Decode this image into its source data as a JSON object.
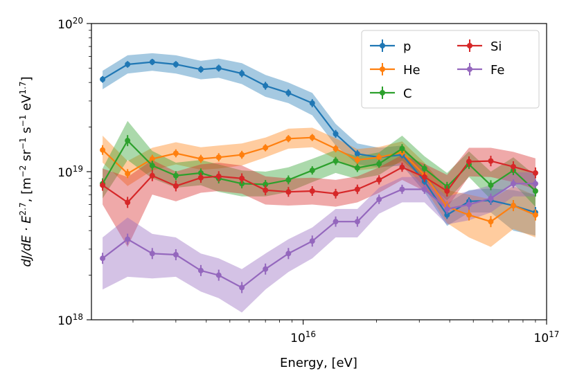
{
  "chart_data": {
    "type": "line",
    "xlabel": "Energy, [eV]",
    "ylabel": {
      "main": "dJ/dE · E",
      "main_exp": "2.7",
      "units_prefix": ", [m",
      "e1": "−2",
      "u1": " sr",
      "e2": "−1",
      "u2": " s",
      "e3": "−1",
      "u3": " eV",
      "e4": "1.7",
      "units_suffix": "]"
    },
    "xscale": "log",
    "yscale": "log",
    "xlim": [
      1350000000000000.0,
      1e+17
    ],
    "ylim": [
      1e+18,
      1e+20
    ],
    "x_ticks": [
      {
        "value": 1e+16,
        "base": "10",
        "exp": "16"
      },
      {
        "value": 1e+17,
        "base": "10",
        "exp": "17"
      }
    ],
    "y_ticks": [
      {
        "value": 1e+18,
        "base": "10",
        "exp": "18"
      },
      {
        "value": 1e+19,
        "base": "10",
        "exp": "19"
      },
      {
        "value": 1e+20,
        "base": "10",
        "exp": "20"
      }
    ],
    "grid": false,
    "legend_position": "top-right",
    "legend_columns": 2,
    "x": [
      1500000000000000.0,
      1900000000000000.0,
      2400000000000000.0,
      3000000000000000.0,
      3800000000000000.0,
      4500000000000000.0,
      5600000000000000.0,
      7000000000000000.0,
      8700000000000000.0,
      1.09e+16,
      1.36e+16,
      1.67e+16,
      2.05e+16,
      2.55e+16,
      3.15e+16,
      3.9e+16,
      4.8e+16,
      5.9e+16,
      7.3e+16,
      9e+16
    ],
    "series": [
      {
        "name": "p",
        "color": "#1f77b4",
        "values": [
          4.2e+19,
          5.3e+19,
          5.5e+19,
          5.3e+19,
          4.9e+19,
          5e+19,
          4.6e+19,
          3.8e+19,
          3.4e+19,
          2.9e+19,
          1.8e+19,
          1.32e+19,
          1.25e+19,
          1.3e+19,
          8.6e+18,
          5.1e+18,
          6.3e+18,
          6.4e+18,
          5.9e+18,
          5.3e+18
        ],
        "band_low": [
          3.6e+19,
          4.6e+19,
          4.8e+19,
          4.6e+19,
          4.2e+19,
          4.3e+19,
          3.9e+19,
          3.2e+19,
          2.9e+19,
          2.4e+19,
          1.5e+19,
          1.12e+19,
          1.07e+19,
          1.1e+19,
          7.3e+18,
          4.3e+18,
          5.3e+18,
          5.3e+18,
          4e+18,
          3.7e+18
        ],
        "band_high": [
          4.8e+19,
          6.1e+19,
          6.3e+19,
          6.1e+19,
          5.6e+19,
          5.8e+19,
          5.4e+19,
          4.5e+19,
          4e+19,
          3.4e+19,
          2.1e+19,
          1.55e+19,
          1.45e+19,
          1.5e+19,
          1e+19,
          6.1e+18,
          7.5e+18,
          7.7e+18,
          7.5e+18,
          7e+18
        ]
      },
      {
        "name": "He",
        "color": "#ff7f0e",
        "values": [
          1.4e+19,
          9.7e+18,
          1.22e+19,
          1.33e+19,
          1.22e+19,
          1.25e+19,
          1.3e+19,
          1.45e+19,
          1.67e+19,
          1.7e+19,
          1.43e+19,
          1.2e+19,
          1.25e+19,
          1.35e+19,
          9.5e+18,
          5.8e+18,
          5.1e+18,
          4.6e+18,
          5.9e+18,
          5.1e+18
        ],
        "band_low": [
          1.15e+19,
          8e+18,
          1.02e+19,
          1.12e+19,
          1.03e+19,
          1.05e+19,
          1.1e+19,
          1.25e+19,
          1.43e+19,
          1.46e+19,
          1.22e+19,
          1.02e+19,
          1.06e+19,
          1.15e+19,
          7.8e+18,
          4.5e+18,
          3.6e+18,
          3.1e+18,
          4.1e+18,
          3.6e+18
        ],
        "band_high": [
          1.75e+19,
          1.18e+19,
          1.45e+19,
          1.58e+19,
          1.46e+19,
          1.5e+19,
          1.55e+19,
          1.7e+19,
          1.95e+19,
          1.98e+19,
          1.68e+19,
          1.42e+19,
          1.47e+19,
          1.6e+19,
          1.15e+19,
          7.5e+18,
          7e+18,
          6.5e+18,
          8e+18,
          6.9e+18
        ]
      },
      {
        "name": "C",
        "color": "#2ca02c",
        "values": [
          8.3e+18,
          1.62e+19,
          1.1e+19,
          9.4e+18,
          9.8e+18,
          9e+18,
          8.3e+18,
          8.2e+18,
          8.8e+18,
          1.02e+19,
          1.18e+19,
          1.06e+19,
          1.13e+19,
          1.43e+19,
          1.05e+19,
          7.9e+18,
          1.12e+19,
          8.1e+18,
          1.02e+19,
          7.4e+18
        ],
        "band_low": [
          6.6e+18,
          1.2e+19,
          9e+18,
          7.8e+18,
          8.1e+18,
          7.3e+18,
          6.8e+18,
          6.8e+18,
          7.3e+18,
          8.5e+18,
          9.8e+18,
          8.9e+18,
          9.5e+18,
          1.19e+19,
          8.8e+18,
          6.4e+18,
          9.2e+18,
          6.5e+18,
          8.3e+18,
          5.8e+18
        ],
        "band_high": [
          1.05e+19,
          2.2e+19,
          1.38e+19,
          1.15e+19,
          1.2e+19,
          1.12e+19,
          1.02e+19,
          1e+19,
          1.07e+19,
          1.22e+19,
          1.4e+19,
          1.27e+19,
          1.35e+19,
          1.75e+19,
          1.27e+19,
          9.8e+18,
          1.37e+19,
          1e+19,
          1.25e+19,
          9.4e+18
        ]
      },
      {
        "name": "Si",
        "color": "#d62728",
        "values": [
          8.1e+18,
          6.2e+18,
          9.4e+18,
          8e+18,
          9.1e+18,
          9.3e+18,
          9e+18,
          7.5e+18,
          7.3e+18,
          7.4e+18,
          7.1e+18,
          7.6e+18,
          8.8e+18,
          1.07e+19,
          9.2e+18,
          7.4e+18,
          1.17e+19,
          1.18e+19,
          1.08e+19,
          9.8e+18
        ],
        "band_low": [
          6e+18,
          3.1e+18,
          7e+18,
          6.3e+18,
          7.2e+18,
          7.4e+18,
          7.1e+18,
          6e+18,
          5.9e+18,
          6e+18,
          5.8e+18,
          6.2e+18,
          7.2e+18,
          8.8e+18,
          7.4e+18,
          5.7e+18,
          9.3e+18,
          9.2e+18,
          8.5e+18,
          7.6e+18
        ],
        "band_high": [
          1.05e+19,
          9.2e+18,
          1.2e+19,
          1e+19,
          1.12e+19,
          1.15e+19,
          1.1e+19,
          9.3e+18,
          9e+18,
          9.1e+18,
          8.8e+18,
          9.3e+18,
          1.07e+19,
          1.3e+19,
          1.13e+19,
          9.5e+18,
          1.45e+19,
          1.45e+19,
          1.36e+19,
          1.23e+19
        ]
      },
      {
        "name": "Fe",
        "color": "#9467bd",
        "values": [
          2.6e+18,
          3.5e+18,
          2.8e+18,
          2.75e+18,
          2.15e+18,
          2e+18,
          1.65e+18,
          2.2e+18,
          2.8e+18,
          3.4e+18,
          4.6e+18,
          4.6e+18,
          6.5e+18,
          7.6e+18,
          7.6e+18,
          5.6e+18,
          6e+18,
          6.6e+18,
          8.3e+18,
          8.3e+18
        ],
        "band_low": [
          1.6e+18,
          1.95e+18,
          1.9e+18,
          1.95e+18,
          1.55e+18,
          1.4e+18,
          1.12e+18,
          1.6e+18,
          2.1e+18,
          2.6e+18,
          3.6e+18,
          3.6e+18,
          5.2e+18,
          6.2e+18,
          6.2e+18,
          4.4e+18,
          4.7e+18,
          5.3e+18,
          6.8e+18,
          6.8e+18
        ],
        "band_high": [
          3.6e+18,
          4.9e+18,
          3.8e+18,
          3.6e+18,
          2.8e+18,
          2.6e+18,
          2.2e+18,
          2.8e+18,
          3.5e+18,
          4.2e+18,
          5.6e+18,
          5.6e+18,
          7.8e+18,
          9.2e+18,
          9.2e+18,
          6.8e+18,
          7.4e+18,
          8.1e+18,
          9.9e+18,
          9.9e+18
        ]
      }
    ]
  }
}
